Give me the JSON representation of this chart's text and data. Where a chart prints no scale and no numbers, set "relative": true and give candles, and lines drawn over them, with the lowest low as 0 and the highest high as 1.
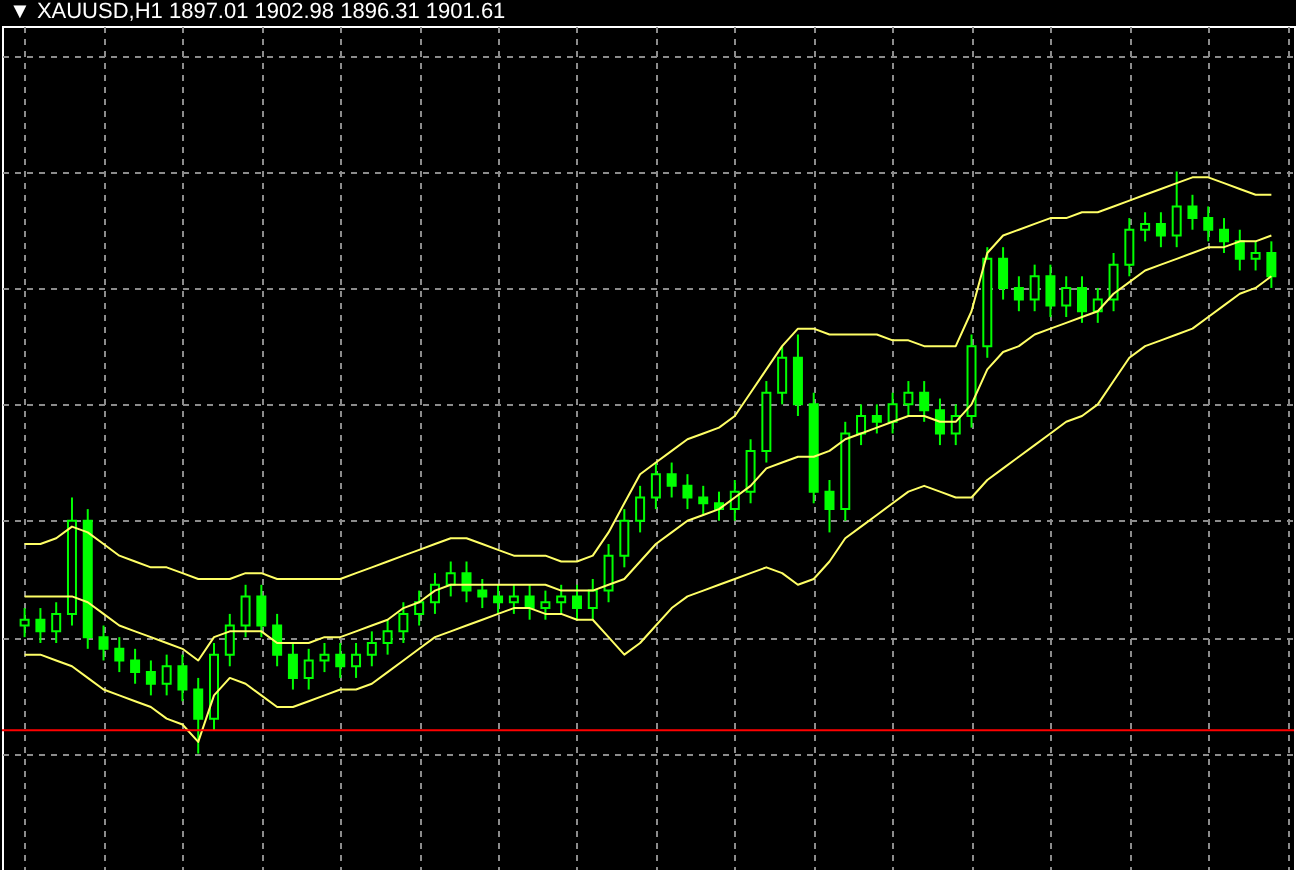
{
  "chart_data": {
    "type": "candlestick",
    "title": "▼ XAUUSD,H1  1897.01 1902.98 1896.31 1901.61",
    "relative": true,
    "grid": true,
    "color": "#00ff00",
    "categories": [
      null,
      null,
      null,
      null,
      null,
      null,
      null,
      null,
      null,
      null,
      null,
      null,
      null,
      null,
      null,
      null,
      null,
      null,
      null,
      null,
      null,
      null,
      null,
      null,
      null,
      null,
      null,
      null,
      null,
      null,
      null,
      null,
      null,
      null,
      null,
      null,
      null,
      null,
      null,
      null,
      null,
      null,
      null,
      null,
      null,
      null,
      null,
      null,
      null,
      null,
      null,
      null,
      null,
      null,
      null,
      null,
      null,
      null,
      null,
      null,
      null,
      null,
      null,
      null,
      null,
      null,
      null,
      null,
      null,
      null,
      null,
      null,
      null,
      null,
      null,
      null,
      null,
      null,
      null,
      null
    ],
    "ohlc": [
      [
        0.22,
        0.25,
        0.2,
        0.23
      ],
      [
        0.23,
        0.25,
        0.19,
        0.21
      ],
      [
        0.21,
        0.26,
        0.19,
        0.24
      ],
      [
        0.24,
        0.44,
        0.22,
        0.4
      ],
      [
        0.4,
        0.42,
        0.18,
        0.2
      ],
      [
        0.2,
        0.22,
        0.16,
        0.18
      ],
      [
        0.18,
        0.2,
        0.14,
        0.16
      ],
      [
        0.16,
        0.18,
        0.12,
        0.14
      ],
      [
        0.14,
        0.16,
        0.1,
        0.12
      ],
      [
        0.12,
        0.17,
        0.1,
        0.15
      ],
      [
        0.15,
        0.17,
        0.09,
        0.11
      ],
      [
        0.11,
        0.13,
        0.0,
        0.06
      ],
      [
        0.06,
        0.19,
        0.04,
        0.17
      ],
      [
        0.17,
        0.24,
        0.15,
        0.22
      ],
      [
        0.22,
        0.29,
        0.2,
        0.27
      ],
      [
        0.27,
        0.29,
        0.2,
        0.22
      ],
      [
        0.22,
        0.24,
        0.15,
        0.17
      ],
      [
        0.17,
        0.19,
        0.11,
        0.13
      ],
      [
        0.13,
        0.18,
        0.11,
        0.16
      ],
      [
        0.16,
        0.19,
        0.14,
        0.17
      ],
      [
        0.17,
        0.19,
        0.13,
        0.15
      ],
      [
        0.15,
        0.19,
        0.13,
        0.17
      ],
      [
        0.17,
        0.21,
        0.15,
        0.19
      ],
      [
        0.19,
        0.23,
        0.17,
        0.21
      ],
      [
        0.21,
        0.26,
        0.19,
        0.24
      ],
      [
        0.24,
        0.28,
        0.22,
        0.26
      ],
      [
        0.26,
        0.31,
        0.24,
        0.29
      ],
      [
        0.29,
        0.33,
        0.27,
        0.31
      ],
      [
        0.31,
        0.33,
        0.26,
        0.28
      ],
      [
        0.28,
        0.3,
        0.25,
        0.27
      ],
      [
        0.27,
        0.29,
        0.24,
        0.26
      ],
      [
        0.26,
        0.29,
        0.24,
        0.27
      ],
      [
        0.27,
        0.29,
        0.23,
        0.25
      ],
      [
        0.25,
        0.28,
        0.23,
        0.26
      ],
      [
        0.26,
        0.29,
        0.24,
        0.27
      ],
      [
        0.27,
        0.29,
        0.23,
        0.25
      ],
      [
        0.25,
        0.3,
        0.23,
        0.28
      ],
      [
        0.28,
        0.36,
        0.26,
        0.34
      ],
      [
        0.34,
        0.42,
        0.32,
        0.4
      ],
      [
        0.4,
        0.46,
        0.38,
        0.44
      ],
      [
        0.44,
        0.5,
        0.42,
        0.48
      ],
      [
        0.48,
        0.5,
        0.44,
        0.46
      ],
      [
        0.46,
        0.48,
        0.42,
        0.44
      ],
      [
        0.44,
        0.46,
        0.41,
        0.43
      ],
      [
        0.43,
        0.45,
        0.4,
        0.42
      ],
      [
        0.42,
        0.47,
        0.4,
        0.45
      ],
      [
        0.45,
        0.54,
        0.43,
        0.52
      ],
      [
        0.52,
        0.64,
        0.5,
        0.62
      ],
      [
        0.62,
        0.7,
        0.6,
        0.68
      ],
      [
        0.68,
        0.72,
        0.58,
        0.6
      ],
      [
        0.6,
        0.62,
        0.43,
        0.45
      ],
      [
        0.45,
        0.47,
        0.38,
        0.42
      ],
      [
        0.42,
        0.57,
        0.4,
        0.55
      ],
      [
        0.55,
        0.6,
        0.53,
        0.58
      ],
      [
        0.58,
        0.6,
        0.55,
        0.57
      ],
      [
        0.57,
        0.62,
        0.55,
        0.6
      ],
      [
        0.6,
        0.64,
        0.58,
        0.62
      ],
      [
        0.62,
        0.64,
        0.57,
        0.59
      ],
      [
        0.59,
        0.61,
        0.53,
        0.55
      ],
      [
        0.55,
        0.6,
        0.53,
        0.58
      ],
      [
        0.58,
        0.72,
        0.56,
        0.7
      ],
      [
        0.7,
        0.87,
        0.68,
        0.85
      ],
      [
        0.85,
        0.87,
        0.78,
        0.8
      ],
      [
        0.8,
        0.82,
        0.76,
        0.78
      ],
      [
        0.78,
        0.84,
        0.76,
        0.82
      ],
      [
        0.82,
        0.84,
        0.75,
        0.77
      ],
      [
        0.77,
        0.82,
        0.75,
        0.8
      ],
      [
        0.8,
        0.82,
        0.74,
        0.76
      ],
      [
        0.76,
        0.8,
        0.74,
        0.78
      ],
      [
        0.78,
        0.86,
        0.76,
        0.84
      ],
      [
        0.84,
        0.92,
        0.82,
        0.9
      ],
      [
        0.9,
        0.93,
        0.88,
        0.91
      ],
      [
        0.91,
        0.93,
        0.87,
        0.89
      ],
      [
        0.89,
        1.0,
        0.87,
        0.94
      ],
      [
        0.94,
        0.96,
        0.9,
        0.92
      ],
      [
        0.92,
        0.94,
        0.88,
        0.9
      ],
      [
        0.9,
        0.92,
        0.86,
        0.88
      ],
      [
        0.88,
        0.9,
        0.83,
        0.85
      ],
      [
        0.85,
        0.88,
        0.83,
        0.86
      ],
      [
        0.86,
        0.88,
        0.8,
        0.82
      ]
    ],
    "series": [
      {
        "type": "line",
        "color": "#ffff66",
        "values": [
          0.36,
          0.36,
          0.37,
          0.39,
          0.38,
          0.36,
          0.34,
          0.33,
          0.32,
          0.32,
          0.31,
          0.3,
          0.3,
          0.3,
          0.31,
          0.31,
          0.3,
          0.3,
          0.3,
          0.3,
          0.3,
          0.31,
          0.32,
          0.33,
          0.34,
          0.35,
          0.36,
          0.37,
          0.37,
          0.36,
          0.35,
          0.34,
          0.34,
          0.34,
          0.33,
          0.33,
          0.34,
          0.38,
          0.43,
          0.48,
          0.5,
          0.52,
          0.54,
          0.55,
          0.56,
          0.58,
          0.62,
          0.66,
          0.7,
          0.73,
          0.73,
          0.72,
          0.72,
          0.72,
          0.72,
          0.71,
          0.71,
          0.7,
          0.7,
          0.7,
          0.76,
          0.86,
          0.89,
          0.9,
          0.91,
          0.92,
          0.92,
          0.93,
          0.93,
          0.94,
          0.95,
          0.96,
          0.97,
          0.98,
          0.99,
          0.99,
          0.98,
          0.97,
          0.96,
          0.96
        ]
      },
      {
        "type": "line",
        "color": "#ffff66",
        "values": [
          0.27,
          0.27,
          0.27,
          0.27,
          0.26,
          0.24,
          0.22,
          0.21,
          0.2,
          0.19,
          0.18,
          0.16,
          0.2,
          0.21,
          0.21,
          0.21,
          0.19,
          0.19,
          0.19,
          0.2,
          0.2,
          0.21,
          0.22,
          0.23,
          0.25,
          0.26,
          0.28,
          0.29,
          0.29,
          0.29,
          0.29,
          0.29,
          0.29,
          0.29,
          0.28,
          0.28,
          0.28,
          0.29,
          0.3,
          0.33,
          0.36,
          0.38,
          0.4,
          0.41,
          0.42,
          0.44,
          0.46,
          0.49,
          0.5,
          0.51,
          0.51,
          0.52,
          0.54,
          0.55,
          0.56,
          0.57,
          0.58,
          0.58,
          0.57,
          0.57,
          0.6,
          0.66,
          0.69,
          0.7,
          0.72,
          0.73,
          0.74,
          0.75,
          0.76,
          0.79,
          0.81,
          0.83,
          0.84,
          0.85,
          0.86,
          0.87,
          0.87,
          0.88,
          0.88,
          0.89
        ]
      },
      {
        "type": "line",
        "color": "#ffff66",
        "values": [
          0.17,
          0.17,
          0.16,
          0.15,
          0.13,
          0.11,
          0.1,
          0.09,
          0.08,
          0.06,
          0.05,
          0.02,
          0.1,
          0.13,
          0.12,
          0.1,
          0.08,
          0.08,
          0.09,
          0.1,
          0.11,
          0.11,
          0.12,
          0.14,
          0.16,
          0.18,
          0.2,
          0.21,
          0.22,
          0.23,
          0.24,
          0.25,
          0.25,
          0.24,
          0.24,
          0.23,
          0.23,
          0.2,
          0.17,
          0.19,
          0.22,
          0.25,
          0.27,
          0.28,
          0.29,
          0.3,
          0.31,
          0.32,
          0.31,
          0.29,
          0.3,
          0.33,
          0.37,
          0.39,
          0.41,
          0.43,
          0.45,
          0.46,
          0.45,
          0.44,
          0.44,
          0.47,
          0.49,
          0.51,
          0.53,
          0.55,
          0.57,
          0.58,
          0.6,
          0.64,
          0.68,
          0.7,
          0.71,
          0.72,
          0.73,
          0.75,
          0.77,
          0.79,
          0.8,
          0.82
        ]
      }
    ],
    "ref_lines": [
      {
        "axis": "y",
        "value": 0.04,
        "color": "#ff0000"
      }
    ]
  }
}
